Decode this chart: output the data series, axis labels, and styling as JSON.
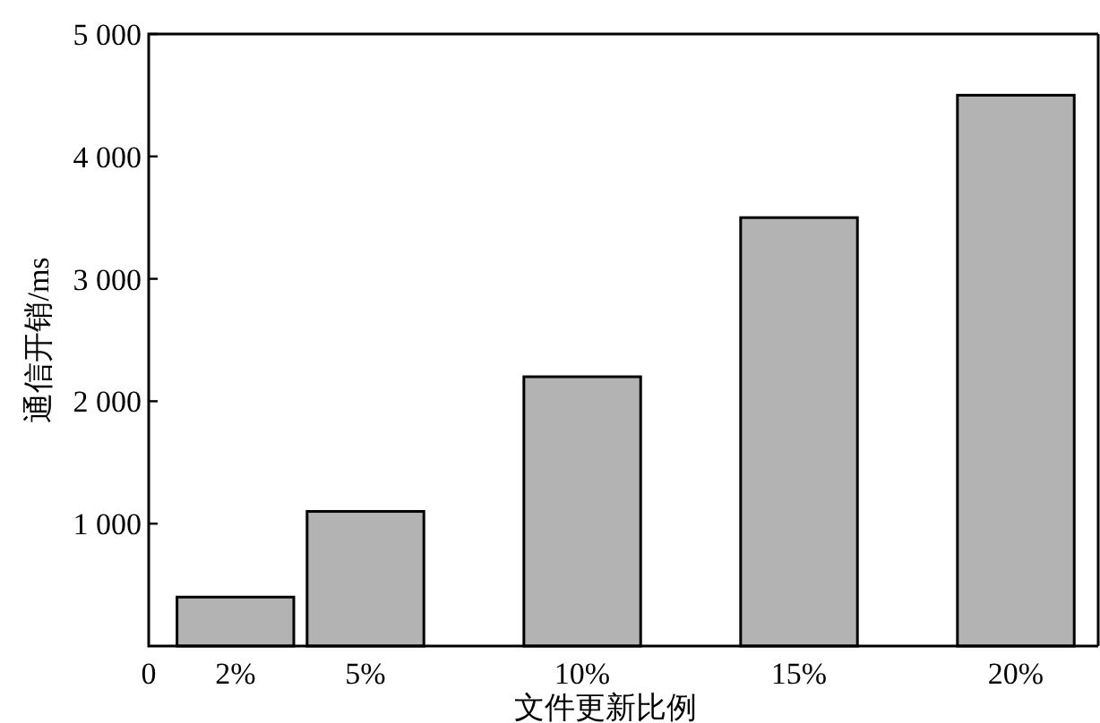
{
  "chart_data": {
    "type": "bar",
    "xlabel": "文件更新比例",
    "ylabel": "通信开销/ms",
    "x": [
      2,
      5,
      10,
      15,
      20
    ],
    "values": [
      400,
      1100,
      2200,
      3500,
      4500
    ],
    "color": "#b3b3b3",
    "xlim": [
      0,
      21.9
    ],
    "xticks": [
      0,
      {
        "value": 2,
        "label": "2%"
      },
      {
        "value": 5,
        "label": "5%"
      },
      {
        "value": 10,
        "label": "10%"
      },
      {
        "value": 15,
        "label": "15%"
      },
      {
        "value": 20,
        "label": "20%"
      }
    ],
    "ylim": [
      0,
      5000
    ],
    "yticks": [
      {
        "value": 1000,
        "label": "1 000"
      },
      {
        "value": 2000,
        "label": "2 000"
      },
      {
        "value": 3000,
        "label": "3 000"
      },
      {
        "value": 4000,
        "label": "4 000"
      },
      {
        "value": 5000,
        "label": "5 000"
      }
    ],
    "grid": false
  }
}
